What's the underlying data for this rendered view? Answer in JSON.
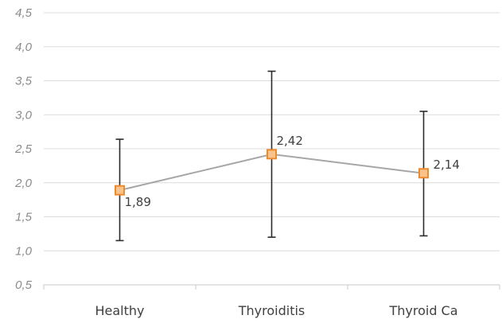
{
  "chart_data": {
    "type": "line",
    "title": "",
    "xlabel": "",
    "ylabel": "",
    "categories": [
      "Healthy",
      "Thyroiditis",
      "Thyroid Ca"
    ],
    "series": [
      {
        "values": [
          1.89,
          2.42,
          2.14
        ],
        "data_labels": [
          "1,89",
          "2,42",
          "2,14"
        ],
        "error_low": [
          1.15,
          1.2,
          1.22
        ],
        "error_high": [
          2.64,
          3.64,
          3.05
        ],
        "line_color": "#a6a6a6",
        "marker_fill": "#f8c48e",
        "marker_stroke": "#ee8a2c",
        "error_bar_color": "#2b2b2b"
      }
    ],
    "y_ticks": [
      0.5,
      1.0,
      1.5,
      2.0,
      2.5,
      3.0,
      3.5,
      4.0,
      4.5
    ],
    "y_tick_labels": [
      "0,5",
      "1,0",
      "1,5",
      "2,0",
      "2,5",
      "3,0",
      "3,5",
      "4,0",
      "4,5"
    ],
    "ylim": [
      0.5,
      4.5
    ],
    "grid": true,
    "grid_color": "#dcdcdc",
    "legend": "none"
  }
}
